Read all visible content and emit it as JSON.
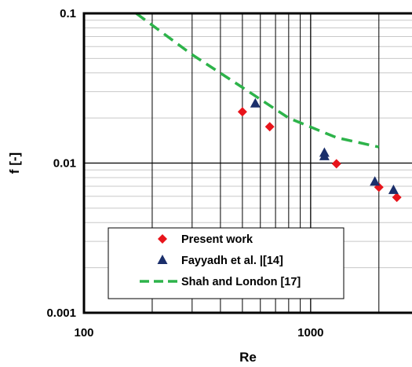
{
  "chart_data": {
    "type": "scatter",
    "xlabel": "Re",
    "ylabel": "f [-]",
    "xscale": "log",
    "yscale": "log",
    "xlim": [
      100,
      2800
    ],
    "ylim": [
      0.001,
      0.1
    ],
    "x_ticks": [
      "100",
      "1000"
    ],
    "y_ticks": [
      "0.001",
      "0.01",
      "0.1"
    ],
    "grid": true,
    "legend_position": "bottom-center",
    "series": [
      {
        "name": "Present work",
        "kind": "scatter",
        "marker": "diamond",
        "color": "#e8141b",
        "x": [
          500,
          660,
          1300,
          2000,
          2400
        ],
        "y": [
          0.022,
          0.0175,
          0.0099,
          0.0069,
          0.0059
        ]
      },
      {
        "name": "Fayyadh et al. |[14]",
        "kind": "scatter",
        "marker": "triangle",
        "color": "#1b2f6b",
        "x": [
          570,
          1150,
          1150,
          1920,
          2320
        ],
        "y": [
          0.025,
          0.0117,
          0.0111,
          0.0075,
          0.0066
        ]
      },
      {
        "name": "Shah and London [17]",
        "kind": "line",
        "dash": true,
        "color": "#2db34a",
        "x": [
          170,
          300,
          500,
          800,
          1300,
          2000
        ],
        "y": [
          0.1,
          0.053,
          0.032,
          0.02,
          0.0148,
          0.0128
        ]
      }
    ]
  }
}
